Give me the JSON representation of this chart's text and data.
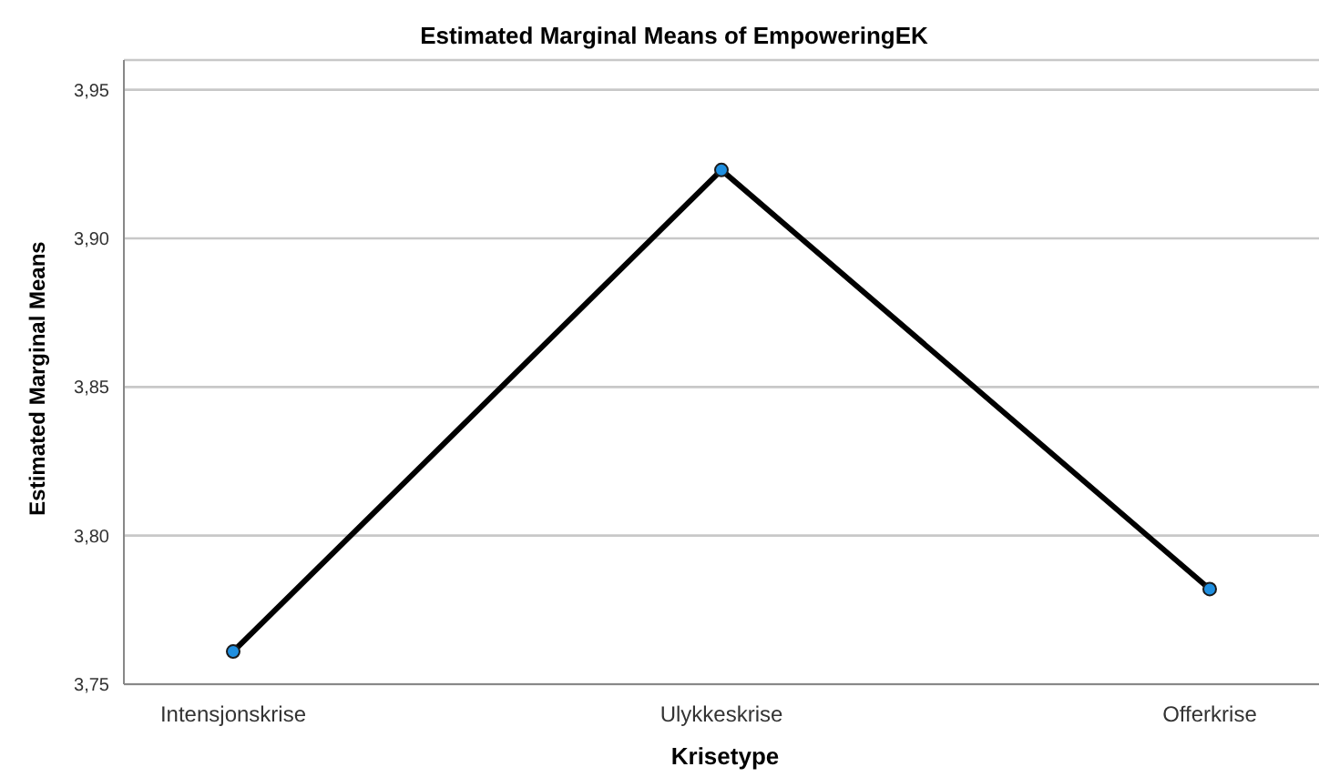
{
  "chart_data": {
    "type": "line",
    "title": "Estimated Marginal Means of EmpoweringEK",
    "xlabel": "Krisetype",
    "ylabel": "Estimated Marginal Means",
    "categories": [
      "Intensjonskrise",
      "Ulykkeskrise",
      "Offerkrise"
    ],
    "series": [
      {
        "color": "#000000",
        "values": [
          3.761,
          3.923,
          3.782
        ]
      }
    ],
    "ylim": [
      3.75,
      3.96
    ],
    "yticks": [
      {
        "value": 3.75,
        "label": "3,75"
      },
      {
        "value": 3.8,
        "label": "3,80"
      },
      {
        "value": 3.85,
        "label": "3,85"
      },
      {
        "value": 3.9,
        "label": "3,90"
      },
      {
        "value": 3.95,
        "label": "3,95"
      }
    ],
    "grid": "y",
    "marker": "circle",
    "line_style": "solid"
  }
}
